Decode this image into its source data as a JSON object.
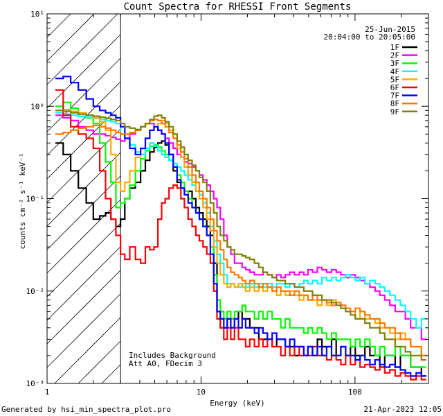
{
  "footer": {
    "generated_by": "Generated by hsi_min_spectra_plot.pro",
    "timestamp": "21-Apr-2023 12:05"
  },
  "annotations": {
    "date": "25-Jun-2015",
    "time_range": "20:04:00 to 20:05:00",
    "note_1": "Includes Background",
    "note_2": "Att A0, FDecim 3"
  },
  "chart_data": {
    "type": "line",
    "title": "Count Spectra for RHESSI Front Segments",
    "xlabel": "Energy (keV)",
    "ylabel": "counts cm⁻² s⁻¹ keV⁻¹",
    "xscale": "log",
    "yscale": "log",
    "xlim": [
      1,
      300
    ],
    "ylim": [
      0.001,
      10
    ],
    "x_tick_labels": [
      "1",
      "10",
      "100"
    ],
    "y_tick_labels": [
      "10⁻³",
      "10⁻²",
      "10⁻¹",
      "10⁰",
      "10¹"
    ],
    "hatched_region_x": [
      1,
      3
    ],
    "legend_position": "top-right",
    "energies": [
      1.2,
      1.35,
      1.5,
      1.7,
      1.9,
      2.1,
      2.3,
      2.5,
      2.7,
      2.9,
      3.1,
      3.3,
      3.6,
      3.9,
      4.2,
      4.5,
      4.8,
      5.1,
      5.4,
      5.7,
      6.0,
      6.4,
      6.8,
      7.2,
      7.6,
      8.0,
      8.5,
      9.0,
      9.5,
      10.0,
      10.6,
      11.2,
      11.8,
      12.4,
      13.0,
      13.7,
      14.4,
      15.2,
      16.0,
      17.0,
      18.0,
      19.0,
      20.0,
      21.5,
      23.0,
      24.5,
      26.0,
      28.0,
      30.0,
      32.0,
      34.0,
      36.5,
      39.0,
      42.0,
      45.0,
      48.0,
      51.0,
      55.0,
      59.0,
      63.0,
      68.0,
      73.0,
      78.0,
      84.0,
      90.0,
      97.0,
      104.0,
      112.0,
      120.0,
      130.0,
      140.0,
      150.0,
      162.0,
      175.0,
      190.0,
      205.0,
      220.0,
      240.0,
      260.0,
      280.0
    ],
    "series": [
      {
        "name": "1F",
        "color": "#000000",
        "values": [
          0.4,
          0.3,
          0.2,
          0.13,
          0.09,
          0.06,
          0.065,
          0.07,
          0.06,
          0.05,
          0.06,
          0.1,
          0.13,
          0.15,
          0.2,
          0.26,
          0.32,
          0.36,
          0.4,
          0.42,
          0.38,
          0.3,
          0.2,
          0.15,
          0.13,
          0.12,
          0.12,
          0.1,
          0.08,
          0.07,
          0.06,
          0.05,
          0.04,
          0.02,
          0.006,
          0.004,
          0.004,
          0.005,
          0.004,
          0.005,
          0.006,
          0.005,
          0.005,
          0.004,
          0.004,
          0.003,
          0.003,
          0.003,
          0.0025,
          0.003,
          0.003,
          0.0025,
          0.0025,
          0.002,
          0.0025,
          0.002,
          0.0025,
          0.002,
          0.003,
          0.0025,
          0.0025,
          0.003,
          0.002,
          0.0025,
          0.002,
          0.0025,
          0.002,
          0.002,
          0.0025,
          0.002,
          0.002,
          0.0015,
          0.002,
          0.002,
          0.0015,
          0.002,
          0.002,
          0.0015,
          0.0015,
          0.0012
        ]
      },
      {
        "name": "2F",
        "color": "#ff00ff",
        "values": [
          0.8,
          0.75,
          0.7,
          0.6,
          0.55,
          0.5,
          0.5,
          0.48,
          0.46,
          0.44,
          0.42,
          0.45,
          0.5,
          0.55,
          0.6,
          0.65,
          0.65,
          0.6,
          0.55,
          0.5,
          0.45,
          0.4,
          0.35,
          0.3,
          0.28,
          0.25,
          0.24,
          0.22,
          0.2,
          0.18,
          0.16,
          0.14,
          0.12,
          0.1,
          0.08,
          0.06,
          0.04,
          0.03,
          0.025,
          0.02,
          0.02,
          0.018,
          0.017,
          0.016,
          0.015,
          0.015,
          0.016,
          0.015,
          0.014,
          0.015,
          0.014,
          0.015,
          0.016,
          0.015,
          0.016,
          0.015,
          0.017,
          0.016,
          0.018,
          0.017,
          0.016,
          0.017,
          0.016,
          0.015,
          0.014,
          0.015,
          0.014,
          0.013,
          0.012,
          0.011,
          0.01,
          0.009,
          0.008,
          0.007,
          0.006,
          0.006,
          0.005,
          0.004,
          0.004,
          0.003
        ]
      },
      {
        "name": "3F",
        "color": "#00ff00",
        "values": [
          1.0,
          1.1,
          0.95,
          0.85,
          0.75,
          0.65,
          0.4,
          0.25,
          0.15,
          0.08,
          0.09,
          0.1,
          0.14,
          0.2,
          0.27,
          0.33,
          0.37,
          0.38,
          0.36,
          0.33,
          0.3,
          0.26,
          0.22,
          0.18,
          0.15,
          0.12,
          0.1,
          0.08,
          0.07,
          0.06,
          0.05,
          0.04,
          0.03,
          0.015,
          0.008,
          0.006,
          0.005,
          0.006,
          0.005,
          0.006,
          0.006,
          0.007,
          0.006,
          0.006,
          0.005,
          0.006,
          0.005,
          0.006,
          0.005,
          0.005,
          0.004,
          0.005,
          0.004,
          0.004,
          0.004,
          0.0035,
          0.004,
          0.0035,
          0.004,
          0.0035,
          0.003,
          0.0035,
          0.003,
          0.003,
          0.003,
          0.0025,
          0.003,
          0.0025,
          0.003,
          0.0025,
          0.002,
          0.0025,
          0.002,
          0.002,
          0.0025,
          0.002,
          0.002,
          0.0015,
          0.0015,
          0.0015
        ]
      },
      {
        "name": "4F",
        "color": "#00ffff",
        "values": [
          0.85,
          0.82,
          0.8,
          0.78,
          0.76,
          0.74,
          0.72,
          0.7,
          0.68,
          0.65,
          0.5,
          0.45,
          0.38,
          0.32,
          0.3,
          0.35,
          0.4,
          0.37,
          0.33,
          0.3,
          0.28,
          0.26,
          0.24,
          0.22,
          0.2,
          0.18,
          0.16,
          0.14,
          0.12,
          0.11,
          0.09,
          0.07,
          0.05,
          0.035,
          0.025,
          0.02,
          0.015,
          0.012,
          0.012,
          0.011,
          0.011,
          0.012,
          0.011,
          0.012,
          0.011,
          0.012,
          0.011,
          0.012,
          0.011,
          0.012,
          0.012,
          0.011,
          0.012,
          0.011,
          0.012,
          0.013,
          0.012,
          0.013,
          0.012,
          0.014,
          0.013,
          0.014,
          0.013,
          0.014,
          0.015,
          0.014,
          0.013,
          0.014,
          0.012,
          0.013,
          0.012,
          0.011,
          0.01,
          0.009,
          0.008,
          0.007,
          0.006,
          0.005,
          0.004,
          0.005
        ]
      },
      {
        "name": "5F",
        "color": "#ffaa00",
        "values": [
          0.9,
          0.92,
          0.88,
          0.85,
          0.8,
          0.75,
          0.68,
          0.55,
          0.3,
          0.15,
          0.12,
          0.15,
          0.2,
          0.28,
          0.35,
          0.45,
          0.55,
          0.6,
          0.65,
          0.7,
          0.65,
          0.55,
          0.45,
          0.35,
          0.28,
          0.22,
          0.18,
          0.15,
          0.12,
          0.1,
          0.08,
          0.06,
          0.045,
          0.03,
          0.02,
          0.015,
          0.012,
          0.011,
          0.012,
          0.011,
          0.012,
          0.011,
          0.01,
          0.011,
          0.01,
          0.011,
          0.01,
          0.011,
          0.01,
          0.009,
          0.01,
          0.009,
          0.01,
          0.009,
          0.008,
          0.009,
          0.008,
          0.008,
          0.007,
          0.008,
          0.007,
          0.008,
          0.007,
          0.007,
          0.006,
          0.006,
          0.005,
          0.006,
          0.005,
          0.005,
          0.0045,
          0.004,
          0.004,
          0.0035,
          0.003,
          0.0035,
          0.003,
          0.0025,
          0.0025,
          0.002
        ]
      },
      {
        "name": "6F",
        "color": "#ff0000",
        "values": [
          1.5,
          0.8,
          0.6,
          0.5,
          0.45,
          0.35,
          0.2,
          0.1,
          0.06,
          0.04,
          0.025,
          0.022,
          0.03,
          0.022,
          0.02,
          0.03,
          0.028,
          0.03,
          0.06,
          0.09,
          0.1,
          0.13,
          0.14,
          0.13,
          0.1,
          0.08,
          0.06,
          0.05,
          0.04,
          0.035,
          0.03,
          0.025,
          0.02,
          0.01,
          0.005,
          0.004,
          0.003,
          0.004,
          0.003,
          0.004,
          0.003,
          0.003,
          0.0025,
          0.003,
          0.0025,
          0.003,
          0.0025,
          0.003,
          0.0025,
          0.0025,
          0.002,
          0.0025,
          0.002,
          0.0025,
          0.002,
          0.002,
          0.002,
          0.0025,
          0.002,
          0.002,
          0.0018,
          0.002,
          0.0018,
          0.0016,
          0.002,
          0.0016,
          0.0018,
          0.0015,
          0.0016,
          0.0015,
          0.0014,
          0.0015,
          0.0013,
          0.0014,
          0.0012,
          0.0013,
          0.0012,
          0.0011,
          0.0012,
          0.0011
        ]
      },
      {
        "name": "7F",
        "color": "#0000ff",
        "values": [
          2.0,
          2.1,
          1.8,
          1.5,
          1.2,
          1.0,
          0.9,
          0.85,
          0.8,
          0.75,
          0.6,
          0.45,
          0.35,
          0.3,
          0.35,
          0.45,
          0.55,
          0.6,
          0.55,
          0.5,
          0.4,
          0.3,
          0.22,
          0.16,
          0.13,
          0.11,
          0.09,
          0.08,
          0.07,
          0.06,
          0.05,
          0.04,
          0.025,
          0.012,
          0.006,
          0.005,
          0.004,
          0.005,
          0.004,
          0.005,
          0.004,
          0.005,
          0.004,
          0.004,
          0.0035,
          0.004,
          0.0035,
          0.003,
          0.0035,
          0.003,
          0.003,
          0.0025,
          0.003,
          0.0025,
          0.0025,
          0.002,
          0.0025,
          0.002,
          0.0025,
          0.002,
          0.0025,
          0.002,
          0.002,
          0.0025,
          0.002,
          0.002,
          0.0018,
          0.002,
          0.0018,
          0.0016,
          0.0018,
          0.0016,
          0.0015,
          0.0016,
          0.0015,
          0.0014,
          0.0013,
          0.0012,
          0.0013,
          0.0012
        ]
      },
      {
        "name": "8F",
        "color": "#ff7700",
        "values": [
          0.5,
          0.52,
          0.55,
          0.58,
          0.6,
          0.62,
          0.6,
          0.58,
          0.55,
          0.52,
          0.5,
          0.5,
          0.52,
          0.55,
          0.6,
          0.65,
          0.7,
          0.72,
          0.7,
          0.65,
          0.6,
          0.52,
          0.45,
          0.38,
          0.32,
          0.27,
          0.22,
          0.18,
          0.15,
          0.12,
          0.1,
          0.08,
          0.06,
          0.045,
          0.035,
          0.028,
          0.022,
          0.018,
          0.016,
          0.015,
          0.014,
          0.013,
          0.012,
          0.013,
          0.012,
          0.011,
          0.012,
          0.011,
          0.01,
          0.011,
          0.01,
          0.01,
          0.009,
          0.01,
          0.009,
          0.009,
          0.008,
          0.009,
          0.008,
          0.008,
          0.0075,
          0.007,
          0.0075,
          0.007,
          0.0065,
          0.006,
          0.0065,
          0.006,
          0.0055,
          0.005,
          0.005,
          0.0045,
          0.004,
          0.004,
          0.0035,
          0.003,
          0.003,
          0.0025,
          0.0025,
          0.002
        ]
      },
      {
        "name": "9F",
        "color": "#808000",
        "values": [
          0.9,
          0.88,
          0.85,
          0.82,
          0.8,
          0.78,
          0.76,
          0.74,
          0.72,
          0.7,
          0.65,
          0.6,
          0.58,
          0.56,
          0.6,
          0.65,
          0.72,
          0.78,
          0.8,
          0.75,
          0.68,
          0.6,
          0.5,
          0.42,
          0.36,
          0.3,
          0.26,
          0.23,
          0.2,
          0.17,
          0.15,
          0.12,
          0.09,
          0.07,
          0.05,
          0.04,
          0.035,
          0.03,
          0.028,
          0.025,
          0.025,
          0.024,
          0.023,
          0.022,
          0.02,
          0.018,
          0.016,
          0.015,
          0.014,
          0.013,
          0.013,
          0.012,
          0.012,
          0.011,
          0.011,
          0.01,
          0.01,
          0.009,
          0.009,
          0.008,
          0.008,
          0.0075,
          0.007,
          0.0065,
          0.006,
          0.0055,
          0.005,
          0.005,
          0.0045,
          0.004,
          0.004,
          0.0035,
          0.003,
          0.003,
          0.0025,
          0.0025,
          0.0022,
          0.002,
          0.002,
          0.0018
        ]
      }
    ]
  }
}
